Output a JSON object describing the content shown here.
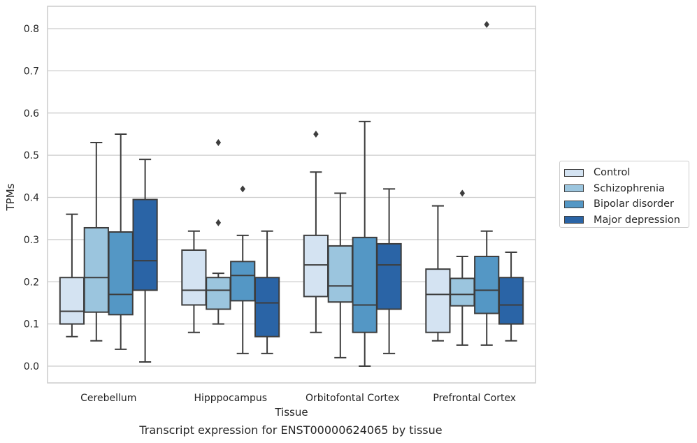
{
  "chart_data": {
    "type": "box",
    "xlabel": "Tissue",
    "ylabel": "TPMs",
    "caption": "Transcript expression for ENST00000624065 by tissue",
    "ylim": [
      -0.04,
      0.85
    ],
    "yticks": [
      "0.0",
      "0.1",
      "0.2",
      "0.3",
      "0.4",
      "0.5",
      "0.6",
      "0.7",
      "0.8"
    ],
    "grid": "horizontal",
    "legend_position": "right",
    "categories": [
      "Cerebellum",
      "Hipppocampus",
      "Orbitofontal Cortex",
      "Prefrontal Cortex"
    ],
    "series": [
      {
        "name": "Control",
        "color": "#d4e3f2",
        "boxes": [
          {
            "min": 0.07,
            "q1": 0.1,
            "median": 0.13,
            "q3": 0.21,
            "max": 0.36,
            "outliers": []
          },
          {
            "min": 0.08,
            "q1": 0.145,
            "median": 0.18,
            "q3": 0.275,
            "max": 0.32,
            "outliers": []
          },
          {
            "min": 0.08,
            "q1": 0.165,
            "median": 0.24,
            "q3": 0.31,
            "max": 0.46,
            "outliers": [
              0.55
            ]
          },
          {
            "min": 0.06,
            "q1": 0.08,
            "median": 0.17,
            "q3": 0.23,
            "max": 0.38,
            "outliers": []
          }
        ]
      },
      {
        "name": "Schizophrenia",
        "color": "#9bc5de",
        "boxes": [
          {
            "min": 0.06,
            "q1": 0.128,
            "median": 0.21,
            "q3": 0.328,
            "max": 0.53,
            "outliers": []
          },
          {
            "min": 0.1,
            "q1": 0.135,
            "median": 0.18,
            "q3": 0.21,
            "max": 0.22,
            "outliers": [
              0.34,
              0.53
            ]
          },
          {
            "min": 0.02,
            "q1": 0.152,
            "median": 0.19,
            "q3": 0.285,
            "max": 0.41,
            "outliers": []
          },
          {
            "min": 0.05,
            "q1": 0.143,
            "median": 0.17,
            "q3": 0.208,
            "max": 0.26,
            "outliers": [
              0.41
            ]
          }
        ]
      },
      {
        "name": "Bipolar disorder",
        "color": "#5497c5",
        "boxes": [
          {
            "min": 0.04,
            "q1": 0.122,
            "median": 0.17,
            "q3": 0.318,
            "max": 0.55,
            "outliers": []
          },
          {
            "min": 0.03,
            "q1": 0.155,
            "median": 0.215,
            "q3": 0.248,
            "max": 0.31,
            "outliers": [
              0.42
            ]
          },
          {
            "min": 0.0,
            "q1": 0.08,
            "median": 0.145,
            "q3": 0.305,
            "max": 0.58,
            "outliers": []
          },
          {
            "min": 0.05,
            "q1": 0.125,
            "median": 0.18,
            "q3": 0.26,
            "max": 0.32,
            "outliers": [
              0.81
            ]
          }
        ]
      },
      {
        "name": "Major depression",
        "color": "#2a64a6",
        "boxes": [
          {
            "min": 0.01,
            "q1": 0.18,
            "median": 0.25,
            "q3": 0.395,
            "max": 0.49,
            "outliers": []
          },
          {
            "min": 0.03,
            "q1": 0.07,
            "median": 0.15,
            "q3": 0.21,
            "max": 0.32,
            "outliers": []
          },
          {
            "min": 0.03,
            "q1": 0.135,
            "median": 0.24,
            "q3": 0.29,
            "max": 0.42,
            "outliers": []
          },
          {
            "min": 0.06,
            "q1": 0.1,
            "median": 0.145,
            "q3": 0.21,
            "max": 0.27,
            "outliers": []
          }
        ]
      }
    ]
  }
}
